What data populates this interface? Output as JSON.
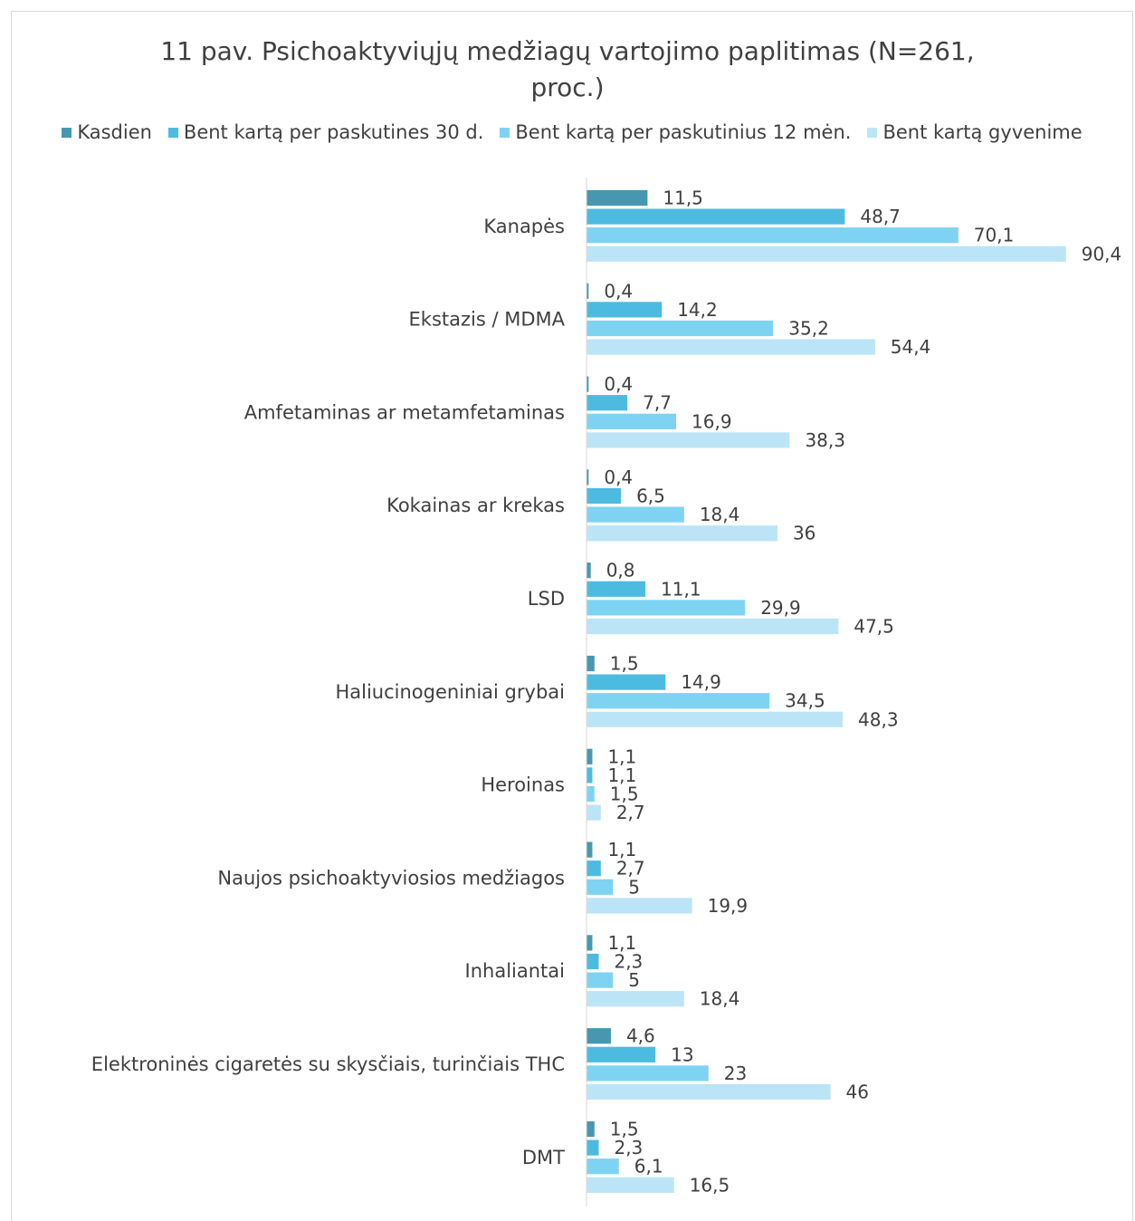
{
  "chart_data": {
    "type": "bar",
    "orientation": "horizontal",
    "title": "11 pav. Psichoaktyviųjų medžiagų vartojimo paplitimas (N=261, proc.)",
    "categories": [
      "Kanapės",
      "Ekstazis / MDMA",
      "Amfetaminas ar metamfetaminas",
      "Kokainas ar krekas",
      "LSD",
      "Haliucinogeniniai grybai",
      "Heroinas",
      "Naujos psichoaktyviosios medžiagos",
      "Inhaliantai",
      "Elektroninės cigaretės su skysčiais, turinčiais THC",
      "DMT"
    ],
    "series": [
      {
        "name": "Kasdien",
        "color": "#4797b1",
        "values": [
          11.5,
          0.4,
          0.4,
          0.4,
          0.8,
          1.5,
          1.1,
          1.1,
          1.1,
          4.6,
          1.5
        ]
      },
      {
        "name": "Bent kartą per paskutines 30 d.",
        "color": "#4dbbe0",
        "values": [
          48.7,
          14.2,
          7.7,
          6.5,
          11.1,
          14.9,
          1.1,
          2.7,
          2.3,
          13,
          2.3
        ]
      },
      {
        "name": "Bent kartą per paskutinius 12 mėn.",
        "color": "#7fd3f2",
        "values": [
          70.1,
          35.2,
          16.9,
          18.4,
          29.9,
          34.5,
          1.5,
          5,
          5,
          23,
          6.1
        ]
      },
      {
        "name": "Bent kartą gyvenime",
        "color": "#bbe5f7",
        "values": [
          90.4,
          54.4,
          38.3,
          36,
          47.5,
          48.3,
          2.7,
          19.9,
          18.4,
          46,
          16.5
        ]
      }
    ],
    "xlim": [
      0,
      100
    ],
    "legend_position": "top",
    "grid": false
  }
}
